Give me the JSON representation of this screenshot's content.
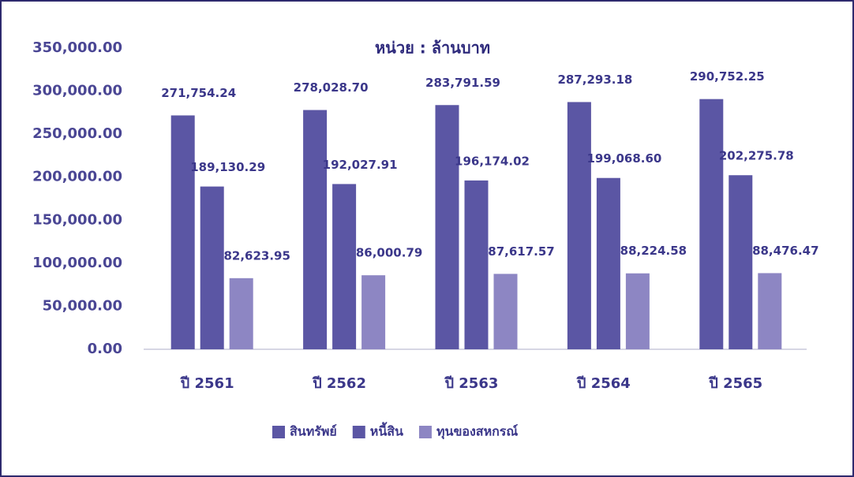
{
  "chart_data": {
    "type": "bar",
    "title": "หน่วย : ล้านบาท",
    "categories": [
      "ปี 2561",
      "ปี 2562",
      "ปี 2563",
      "ปี 2564",
      "ปี 2565"
    ],
    "series": [
      {
        "name": "สินทรัพย์",
        "color": "#5b56a4",
        "values": [
          271754.24,
          278028.7,
          283791.59,
          287293.18,
          290752.25
        ],
        "value_labels": [
          "271,754.24",
          "278,028.70",
          "283,791.59",
          "287,293.18",
          "290,752.25"
        ]
      },
      {
        "name": "หนี้สิน",
        "color": "#5b56a4",
        "values": [
          189130.29,
          192027.91,
          196174.02,
          199068.6,
          202275.78
        ],
        "value_labels": [
          "189,130.29",
          "192,027.91",
          "196,174.02",
          "199,068.60",
          "202,275.78"
        ]
      },
      {
        "name": "ทุนของสหกรณ์",
        "color": "#8d86c3",
        "values": [
          82623.95,
          86000.79,
          87617.57,
          88224.58,
          88476.47
        ],
        "value_labels": [
          "82,623.95",
          "86,000.79",
          "87,617.57",
          "88,224.58",
          "88,476.47"
        ]
      }
    ],
    "ylim": [
      0,
      350000
    ],
    "yticks": [
      {
        "value": 0,
        "label": "0.00"
      },
      {
        "value": 50000,
        "label": "50,000.00"
      },
      {
        "value": 100000,
        "label": "100,000.00"
      },
      {
        "value": 150000,
        "label": "150,000.00"
      },
      {
        "value": 200000,
        "label": "200,000.00"
      },
      {
        "value": 250000,
        "label": "250,000.00"
      },
      {
        "value": 300000,
        "label": "300,000.00"
      },
      {
        "value": 350000,
        "label": "350,000.00"
      }
    ],
    "grid": false,
    "legend": "bottom"
  }
}
